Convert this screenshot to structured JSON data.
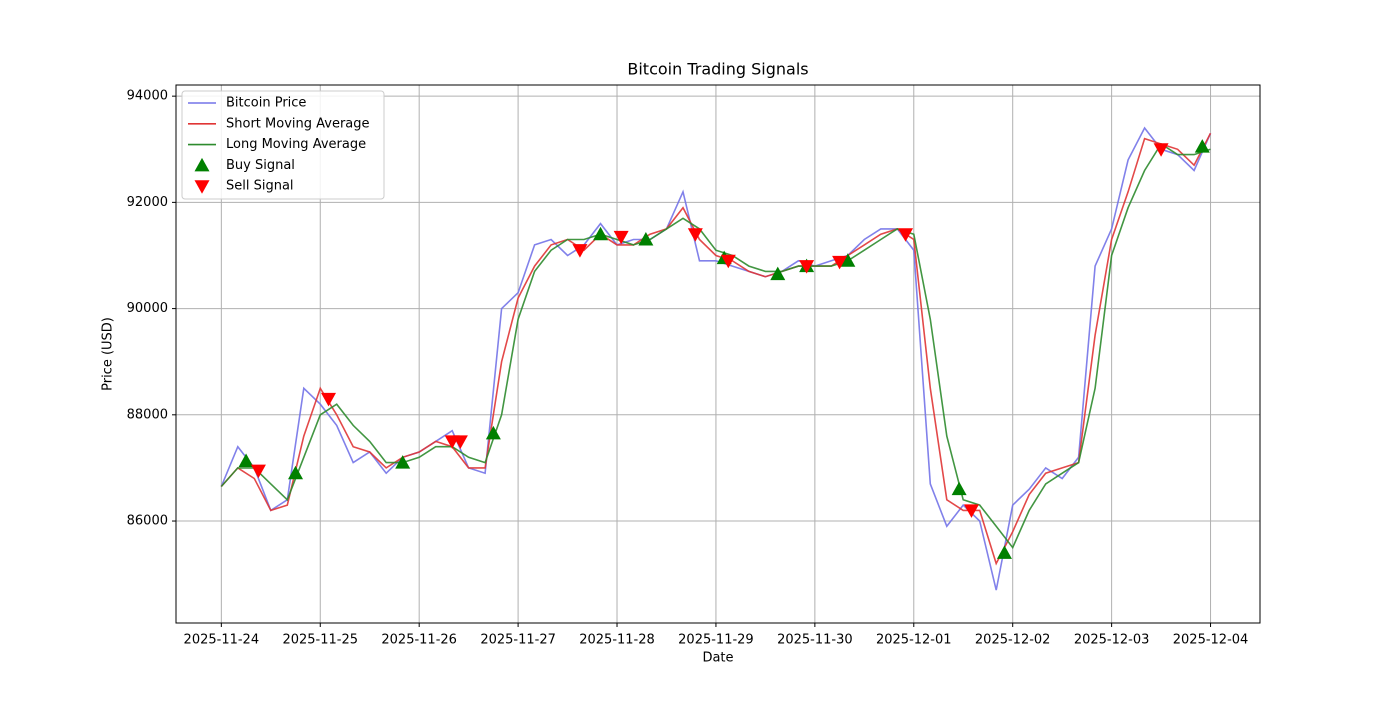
{
  "chart_data": {
    "type": "line",
    "title": "Bitcoin Trading Signals",
    "x_label": "Date",
    "y_label": "Price (USD)",
    "grid": true,
    "legend": "upper left",
    "xlim": [
      "2025-11-23T13:00",
      "2025-12-04T12:00"
    ],
    "xticks": [
      "2025-11-24",
      "2025-11-25",
      "2025-11-26",
      "2025-11-27",
      "2025-11-28",
      "2025-11-29",
      "2025-11-30",
      "2025-12-01",
      "2025-12-02",
      "2025-12-03",
      "2025-12-04"
    ],
    "ylim": [
      84080,
      94210
    ],
    "yticks": [
      86000,
      88000,
      90000,
      92000,
      94000
    ],
    "x": [
      "2025-11-24T00:00",
      "2025-11-24T04:00",
      "2025-11-24T08:00",
      "2025-11-24T12:00",
      "2025-11-24T16:00",
      "2025-11-24T20:00",
      "2025-11-25T00:00",
      "2025-11-25T04:00",
      "2025-11-25T08:00",
      "2025-11-25T12:00",
      "2025-11-25T16:00",
      "2025-11-25T20:00",
      "2025-11-26T00:00",
      "2025-11-26T04:00",
      "2025-11-26T08:00",
      "2025-11-26T12:00",
      "2025-11-26T16:00",
      "2025-11-26T20:00",
      "2025-11-27T00:00",
      "2025-11-27T04:00",
      "2025-11-27T08:00",
      "2025-11-27T12:00",
      "2025-11-27T16:00",
      "2025-11-27T20:00",
      "2025-11-28T00:00",
      "2025-11-28T04:00",
      "2025-11-28T08:00",
      "2025-11-28T12:00",
      "2025-11-28T16:00",
      "2025-11-28T20:00",
      "2025-11-29T00:00",
      "2025-11-29T04:00",
      "2025-11-29T08:00",
      "2025-11-29T12:00",
      "2025-11-29T16:00",
      "2025-11-29T20:00",
      "2025-11-30T00:00",
      "2025-11-30T04:00",
      "2025-11-30T08:00",
      "2025-11-30T12:00",
      "2025-11-30T16:00",
      "2025-11-30T20:00",
      "2025-12-01T00:00",
      "2025-12-01T04:00",
      "2025-12-01T08:00",
      "2025-12-01T12:00",
      "2025-12-01T16:00",
      "2025-12-01T20:00",
      "2025-12-02T00:00",
      "2025-12-02T04:00",
      "2025-12-02T08:00",
      "2025-12-02T12:00",
      "2025-12-02T16:00",
      "2025-12-02T20:00",
      "2025-12-03T00:00",
      "2025-12-03T04:00",
      "2025-12-03T08:00",
      "2025-12-03T12:00",
      "2025-12-03T16:00",
      "2025-12-03T20:00",
      "2025-12-04T00:00"
    ],
    "series": [
      {
        "name": "Bitcoin Price",
        "color": "#7373e8",
        "kind": "line",
        "values": [
          86650,
          87400,
          87000,
          86200,
          86400,
          88500,
          88200,
          87800,
          87100,
          87300,
          86900,
          87200,
          87300,
          87500,
          87700,
          87000,
          86900,
          90000,
          90300,
          91200,
          91300,
          91000,
          91200,
          91600,
          91200,
          91300,
          91300,
          91500,
          92200,
          90900,
          90900,
          90800,
          90700,
          90600,
          90700,
          90900,
          90800,
          90900,
          91000,
          91300,
          91500,
          91500,
          91100,
          86700,
          85900,
          86300,
          86000,
          84700,
          86300,
          86600,
          87000,
          86800,
          87200,
          90800,
          91500,
          92800,
          93400,
          93000,
          92900,
          92600,
          93300
        ]
      },
      {
        "name": "Short Moving Average",
        "color": "#e03535",
        "kind": "line",
        "values": [
          86650,
          87000,
          86800,
          86200,
          86300,
          87600,
          88500,
          88000,
          87400,
          87300,
          87000,
          87200,
          87300,
          87500,
          87400,
          87000,
          87000,
          89000,
          90200,
          90800,
          91200,
          91300,
          91100,
          91400,
          91200,
          91200,
          91400,
          91500,
          91900,
          91300,
          91000,
          90900,
          90700,
          90600,
          90700,
          90800,
          90800,
          90800,
          91000,
          91200,
          91400,
          91500,
          91300,
          88500,
          86400,
          86200,
          86200,
          85200,
          85800,
          86500,
          86900,
          87000,
          87100,
          89500,
          91300,
          92200,
          93200,
          93100,
          93000,
          92700,
          93300
        ]
      },
      {
        "name": "Long Moving Average",
        "color": "#2e8b2e",
        "kind": "line",
        "values": [
          86650,
          87000,
          87000,
          86700,
          86400,
          87200,
          88000,
          88200,
          87800,
          87500,
          87100,
          87100,
          87200,
          87400,
          87400,
          87200,
          87100,
          88000,
          89800,
          90700,
          91100,
          91300,
          91300,
          91400,
          91300,
          91200,
          91300,
          91500,
          91700,
          91500,
          91100,
          91000,
          90800,
          90700,
          90700,
          90800,
          90800,
          90800,
          90900,
          91100,
          91300,
          91500,
          91400,
          89800,
          87600,
          86400,
          86300,
          85900,
          85500,
          86200,
          86700,
          86900,
          87100,
          88500,
          91000,
          91900,
          92600,
          93100,
          92900,
          92900,
          93000
        ]
      },
      {
        "name": "Buy Signal",
        "color": "#008000",
        "kind": "buy",
        "x": [
          "2025-11-24T06:00",
          "2025-11-24T18:00",
          "2025-11-25T20:00",
          "2025-11-26T18:00",
          "2025-11-27T20:00",
          "2025-11-28T07:00",
          "2025-11-29T02:00",
          "2025-11-29T15:00",
          "2025-11-29T22:00",
          "2025-11-30T08:00",
          "2025-12-01T11:00",
          "2025-12-01T22:00",
          "2025-12-03T22:00"
        ],
        "values": [
          87130,
          86900,
          87100,
          87650,
          91400,
          91300,
          90950,
          90650,
          90800,
          90900,
          86600,
          85400,
          93050
        ]
      },
      {
        "name": "Sell Signal",
        "color": "#ff0000",
        "kind": "sell",
        "x": [
          "2025-11-24T09:00",
          "2025-11-25T02:00",
          "2025-11-26T08:00",
          "2025-11-26T10:00",
          "2025-11-27T15:00",
          "2025-11-28T01:00",
          "2025-11-28T19:00",
          "2025-11-29T03:00",
          "2025-11-29T22:00",
          "2025-11-30T06:00",
          "2025-11-30T22:00",
          "2025-12-01T14:00",
          "2025-12-03T12:00"
        ],
        "values": [
          86950,
          88300,
          87500,
          87500,
          91100,
          91350,
          91400,
          90900,
          90800,
          90880,
          91400,
          86200,
          93000
        ]
      }
    ]
  }
}
